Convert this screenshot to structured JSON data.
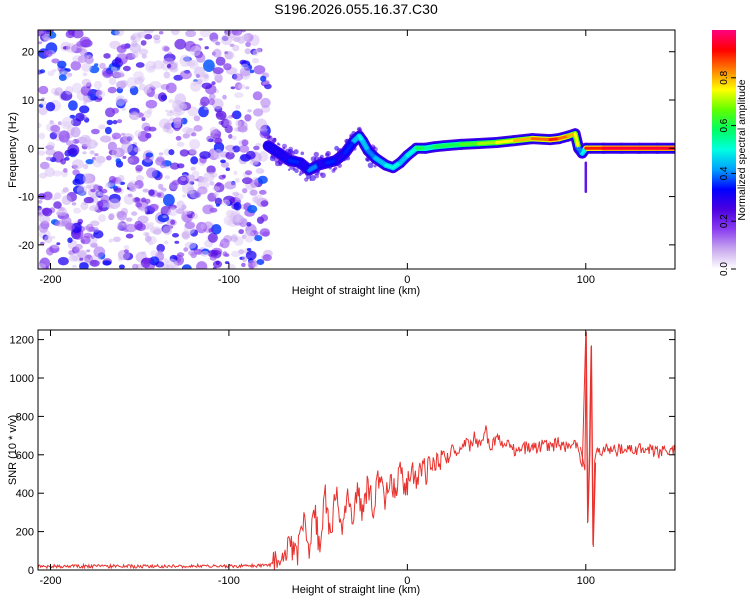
{
  "title": "S196.2026.055.16.37.C30",
  "chart_data": [
    {
      "type": "heatmap",
      "name": "spectrogram",
      "title": "S196.2026.055.16.37.C30",
      "xlabel": "Height of straight line (km)",
      "ylabel": "Frequency (Hz)",
      "xlim": [
        -207,
        150
      ],
      "ylim": [
        -25,
        24.5
      ],
      "xticks": [
        -200,
        -100,
        0,
        100
      ],
      "xtick_labels": [
        "-200",
        "-100",
        "0",
        "100"
      ],
      "yticks": [
        -20,
        -10,
        0,
        10,
        20
      ],
      "ytick_labels": [
        "-20",
        "-10",
        "0",
        "10",
        "20"
      ],
      "noise_region_x": [
        -207,
        -78
      ],
      "signal_start_x": -78,
      "ridge": {
        "x": [
          -78,
          -72,
          -66,
          -60,
          -55,
          -50,
          -45,
          -40,
          -35,
          -30,
          -27,
          -25,
          -22,
          -18,
          -12,
          -8,
          -4,
          0,
          5,
          10,
          15,
          20,
          30,
          40,
          50,
          60,
          70,
          80,
          85,
          90,
          94,
          96,
          98,
          100,
          110,
          120,
          130,
          140,
          150
        ],
        "y": [
          0.5,
          -1,
          -2.5,
          -3,
          -4.5,
          -3.5,
          -3,
          -2.5,
          -1,
          1.5,
          2.5,
          1.5,
          -0.5,
          -2,
          -3.5,
          -4,
          -3,
          -1.5,
          0,
          0,
          0.3,
          0.5,
          0.8,
          1,
          1.2,
          1.6,
          2,
          1.8,
          2,
          2.5,
          3,
          0,
          -1,
          0,
          0,
          0,
          0,
          0,
          0
        ],
        "amplitude": [
          0.3,
          0.3,
          0.35,
          0.3,
          0.4,
          0.3,
          0.35,
          0.3,
          0.35,
          0.45,
          0.5,
          0.45,
          0.4,
          0.45,
          0.5,
          0.5,
          0.45,
          0.5,
          0.6,
          0.55,
          0.6,
          0.6,
          0.65,
          0.7,
          0.75,
          0.8,
          0.85,
          0.9,
          0.85,
          0.8,
          0.75,
          0.4,
          0.5,
          0.9,
          0.95,
          0.95,
          0.95,
          0.95,
          0.95
        ]
      },
      "colorbar": {
        "label": "Normalized spectral amplitude",
        "range": [
          0,
          1
        ],
        "ticks": [
          0.0,
          0.2,
          0.4,
          0.6,
          0.8
        ],
        "tick_labels": [
          "0.0",
          "0.2",
          "0.4",
          "0.6",
          "0.8"
        ],
        "colors": [
          "#ffffff",
          "#c8a8ef",
          "#8a3cf0",
          "#4b00e0",
          "#0000ff",
          "#00a0ff",
          "#00ffe0",
          "#00ff60",
          "#60ff00",
          "#ffff00",
          "#ff8000",
          "#ff0000",
          "#ff0080"
        ]
      },
      "grid": false
    },
    {
      "type": "line",
      "name": "snr",
      "xlabel": "Height of straight line (km)",
      "ylabel": "SNR (10 * v/v)",
      "xlim": [
        -207,
        150
      ],
      "ylim": [
        0,
        1250
      ],
      "xticks": [
        -200,
        -100,
        0,
        100
      ],
      "xtick_labels": [
        "-200",
        "-100",
        "0",
        "100"
      ],
      "yticks": [
        0,
        200,
        400,
        600,
        800,
        1000,
        1200
      ],
      "ytick_labels": [
        "0",
        "200",
        "400",
        "600",
        "800",
        "1000",
        "1200"
      ],
      "color": "#e8322e",
      "series": [
        {
          "name": "SNR",
          "x": [
            -207,
            -180,
            -150,
            -120,
            -100,
            -80,
            -70,
            -66,
            -62,
            -58,
            -55,
            -52,
            -49,
            -46,
            -43,
            -40,
            -37,
            -34,
            -31,
            -28,
            -25,
            -22,
            -19,
            -16,
            -13,
            -10,
            -7,
            -4,
            -1,
            2,
            5,
            8,
            11,
            14,
            17,
            20,
            23,
            26,
            29,
            32,
            35,
            38,
            41,
            44,
            47,
            50,
            53,
            56,
            60,
            65,
            70,
            75,
            80,
            85,
            90,
            95,
            98,
            100,
            101,
            102,
            103,
            104,
            105,
            106,
            108,
            110,
            115,
            120,
            130,
            140,
            150
          ],
          "y": [
            18,
            20,
            19,
            21,
            20,
            22,
            40,
            140,
            60,
            300,
            80,
            330,
            90,
            400,
            160,
            410,
            200,
            380,
            250,
            420,
            300,
            450,
            330,
            480,
            360,
            490,
            400,
            530,
            420,
            520,
            470,
            550,
            500,
            580,
            540,
            600,
            580,
            640,
            600,
            680,
            630,
            700,
            640,
            720,
            620,
            700,
            640,
            660,
            620,
            640,
            630,
            650,
            640,
            660,
            630,
            650,
            520,
            1240,
            250,
            600,
            1170,
            120,
            560,
            640,
            610,
            620,
            630,
            620,
            630,
            610,
            620
          ]
        }
      ],
      "grid": false
    }
  ]
}
